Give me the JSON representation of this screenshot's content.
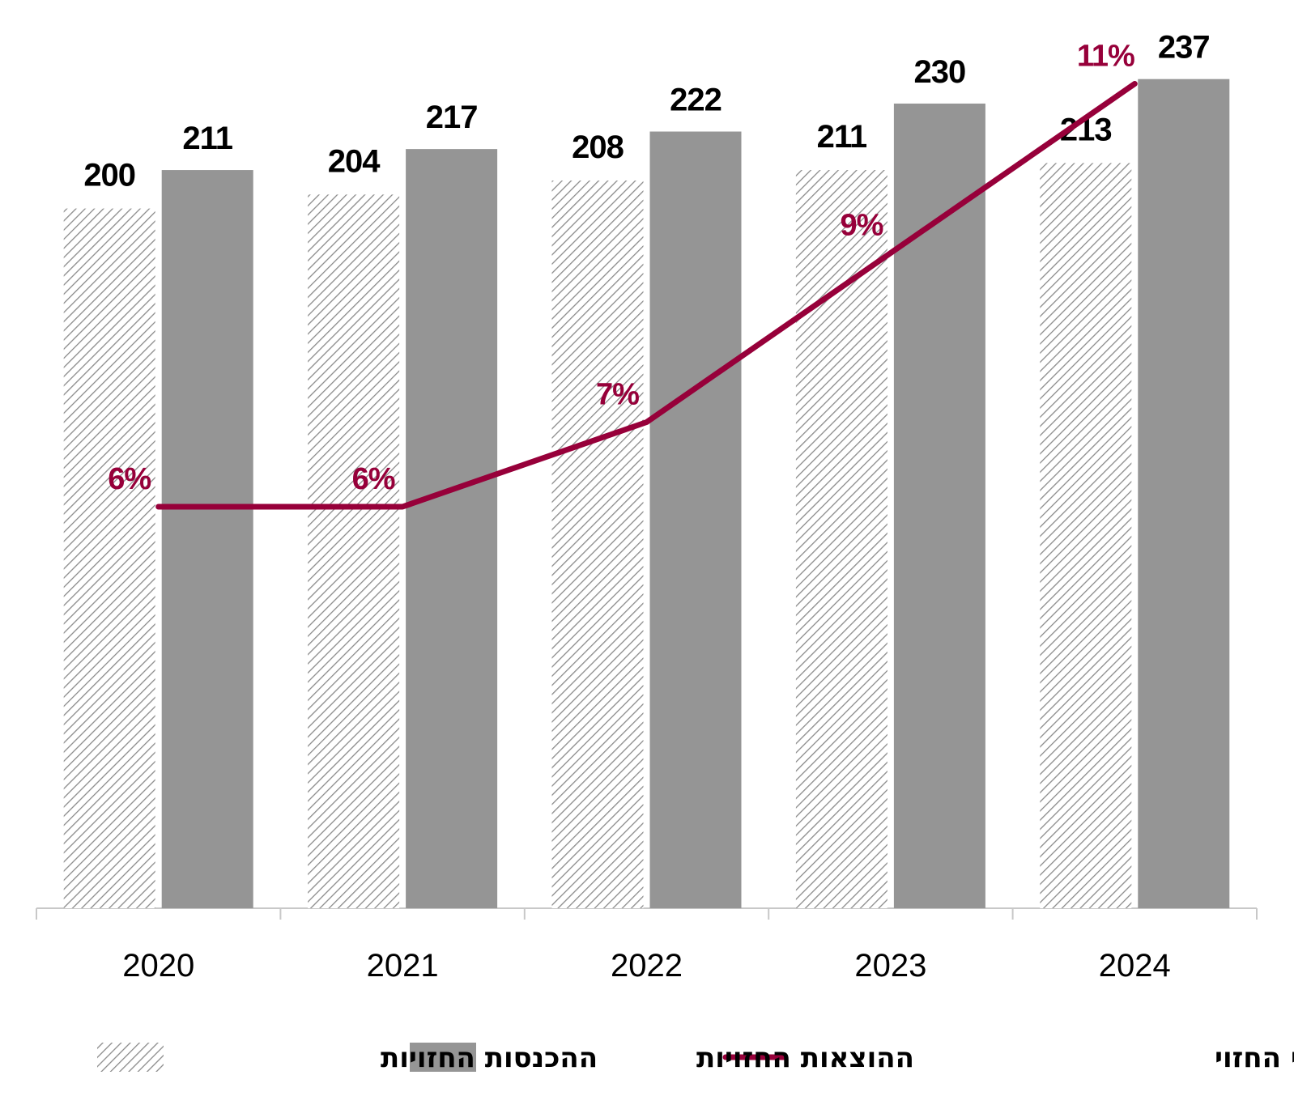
{
  "chart_data": {
    "type": "bar",
    "categories": [
      "2020",
      "2021",
      "2022",
      "2023",
      "2024"
    ],
    "series": [
      {
        "name": "ההכנסות החזויות",
        "kind": "bar",
        "pattern": "hatched",
        "values": [
          200,
          204,
          208,
          211,
          213
        ],
        "labels": [
          "200",
          "204",
          "208",
          "211",
          "213"
        ]
      },
      {
        "name": "ההוצאות החזויות",
        "kind": "bar",
        "color": "#959595",
        "values": [
          211,
          217,
          222,
          230,
          237
        ],
        "labels": [
          "211",
          "217",
          "222",
          "230",
          "237"
        ]
      },
      {
        "name": "שיעור הגירעון השוטף השנתי החזוי",
        "kind": "line",
        "color": "#97003a",
        "values": [
          6,
          6,
          7,
          9,
          11
        ],
        "labels": [
          "6%",
          "6%",
          "7%",
          "9%",
          "11%"
        ]
      }
    ],
    "legend": {
      "position": "bottom",
      "items": [
        "שיעור הגירעון השוטף השנתי החזוי",
        "ההוצאות החזויות",
        "ההכנסות החזויות"
      ]
    },
    "grid": false,
    "colors": {
      "expenses": "#959595",
      "deficit_line": "#97003a",
      "hatch": "#8a8a8a",
      "axis": "#c8c8c8"
    }
  }
}
